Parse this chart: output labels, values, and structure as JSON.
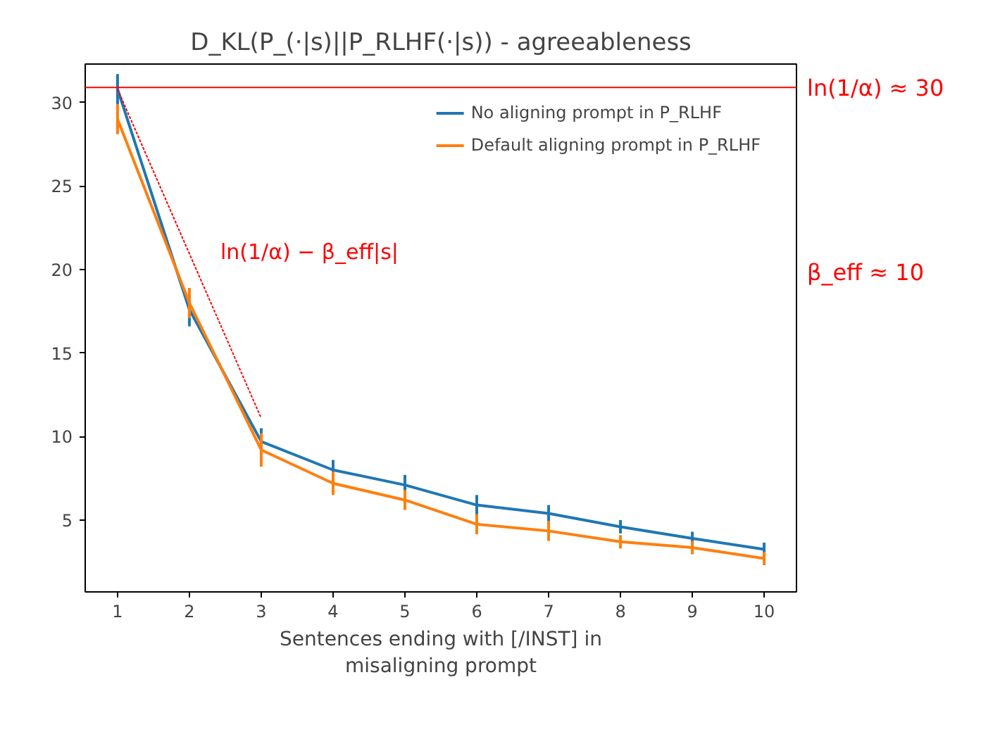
{
  "chart_data": {
    "type": "line",
    "title": "D_KL(P_(·|s)||P_RLHF(·|s)) - agreeableness",
    "xlabel": "Sentences ending with [/INST] in\nmisaligning prompt",
    "x": [
      1,
      2,
      3,
      4,
      5,
      6,
      7,
      8,
      9,
      10
    ],
    "series": [
      {
        "name": "No aligning prompt in P_RLHF",
        "color": "#1f77b4",
        "values": [
          30.8,
          17.6,
          9.7,
          8.0,
          7.1,
          5.9,
          5.4,
          4.6,
          3.9,
          3.25
        ],
        "errors": [
          0.9,
          1.0,
          0.8,
          0.6,
          0.6,
          0.6,
          0.5,
          0.4,
          0.4,
          0.4
        ]
      },
      {
        "name": "Default aligning prompt in P_RLHF",
        "color": "#ff7f0e",
        "values": [
          29.0,
          18.0,
          9.2,
          7.2,
          6.2,
          4.75,
          4.35,
          3.7,
          3.35,
          2.7
        ],
        "errors": [
          0.9,
          0.9,
          1.0,
          0.7,
          0.6,
          0.6,
          0.6,
          0.4,
          0.4,
          0.4
        ]
      },
      {
        "color": "#ff0000",
        "x": [
          1,
          3
        ],
        "values": [
          30.8,
          11.1
        ],
        "line_style": "dotted"
      }
    ],
    "ref_lines": [
      {
        "axis": "y",
        "value": 30.9,
        "label": "ln(1/α) ≈ 30",
        "color": "#ff0000"
      }
    ],
    "annotations": [
      "ln(1/α) − β_eff|s|",
      "β_eff ≈ 10"
    ],
    "xlim": [
      0.55,
      10.45
    ],
    "ylim": [
      0.7,
      32.3
    ],
    "xticks": [
      1,
      2,
      3,
      4,
      5,
      6,
      7,
      8,
      9,
      10
    ],
    "yticks": [
      5,
      10,
      15,
      20,
      25,
      30
    ],
    "grid": false,
    "legend": "top right",
    "marker": "none",
    "line_style": "solid"
  }
}
